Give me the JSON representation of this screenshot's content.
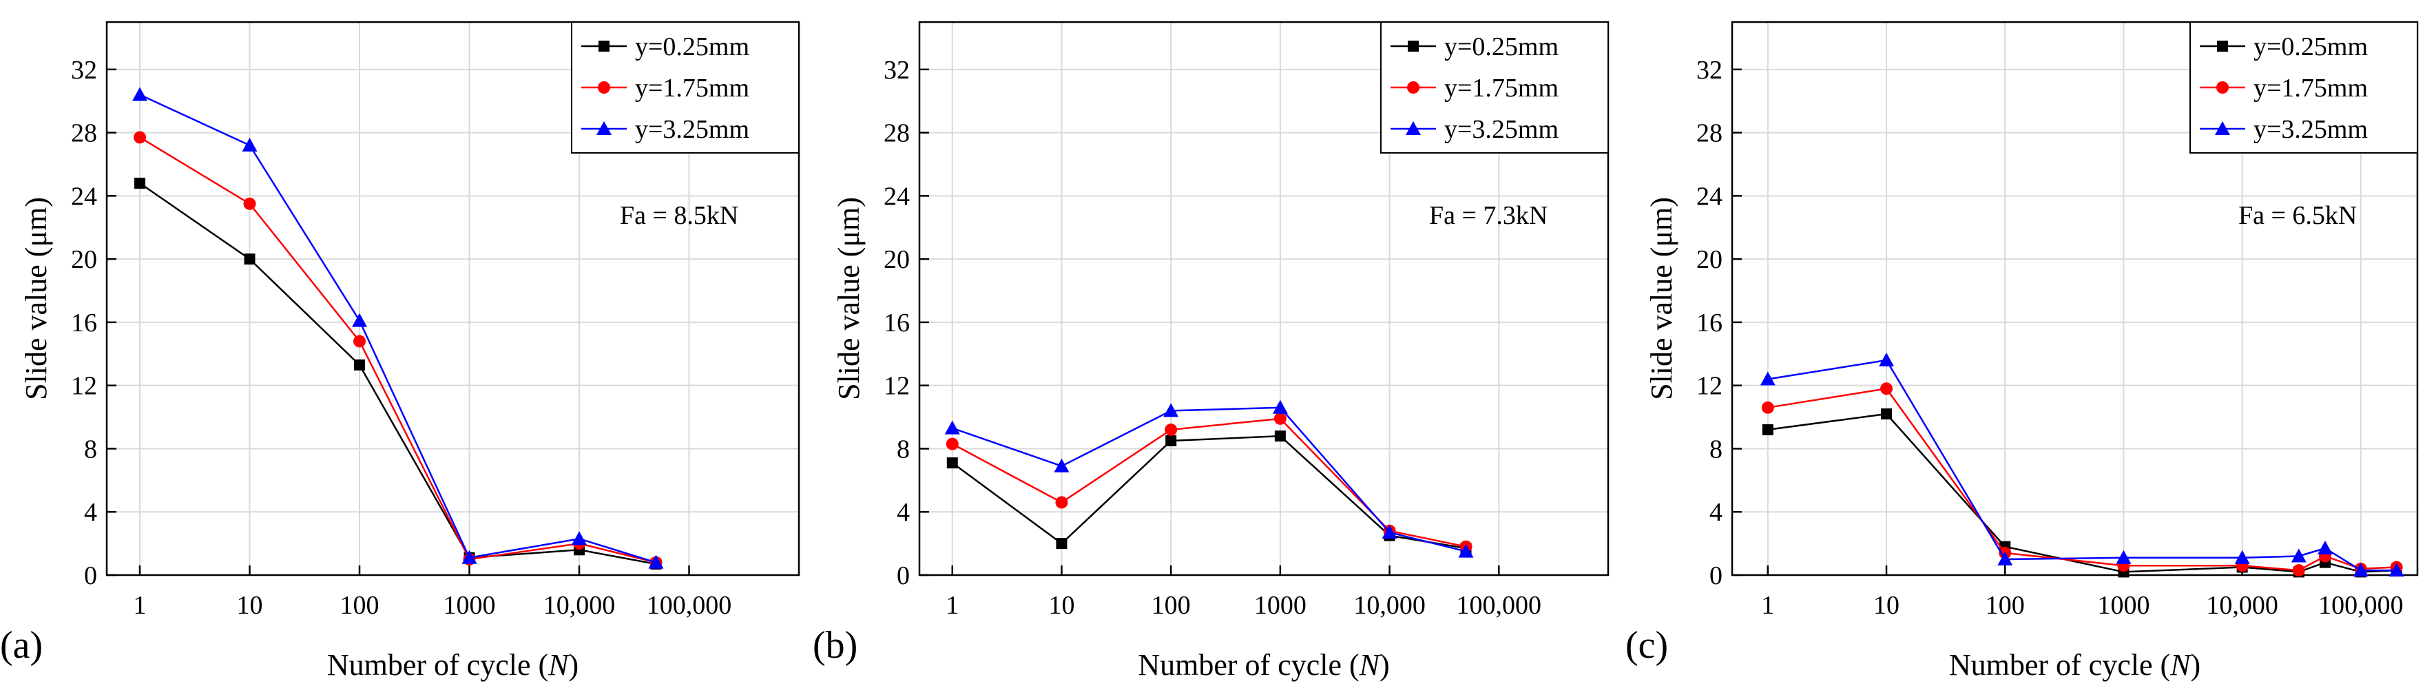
{
  "chart_data": [
    {
      "type": "line",
      "panel_label": "(a)",
      "xlabel_prefix": "Number of cycle (",
      "xlabel_var": "N",
      "xlabel_suffix": ")",
      "ylabel": "Slide value (μm)",
      "x_scale": "log",
      "xlim": [
        0.5,
        1000000
      ],
      "ylim": [
        0,
        35
      ],
      "xticks": [
        1,
        10,
        100,
        1000,
        10000,
        100000
      ],
      "xtick_labels": [
        "1",
        "10",
        "100",
        "1000",
        "10,000",
        "100,000"
      ],
      "yticks": [
        0,
        4,
        8,
        12,
        16,
        20,
        24,
        28,
        32
      ],
      "ytick_labels": [
        "0",
        "4",
        "8",
        "12",
        "16",
        "20",
        "24",
        "28",
        "32"
      ],
      "grid": true,
      "legend_position": "top-right",
      "annotation": "Fa = 8.5kN",
      "series": [
        {
          "name": "y=0.25mm",
          "color": "#000000",
          "marker": "square",
          "x": [
            1,
            10,
            100,
            1000,
            10000,
            50000
          ],
          "y": [
            24.8,
            20.0,
            13.3,
            1.1,
            1.6,
            0.7
          ]
        },
        {
          "name": "y=1.75mm",
          "color": "#ff0000",
          "marker": "circle",
          "x": [
            1,
            10,
            100,
            1000,
            10000,
            50000
          ],
          "y": [
            27.7,
            23.5,
            14.8,
            1.0,
            2.0,
            0.8
          ]
        },
        {
          "name": "y=3.25mm",
          "color": "#0000ff",
          "marker": "triangle",
          "x": [
            1,
            10,
            100,
            1000,
            10000,
            50000
          ],
          "y": [
            30.4,
            27.2,
            16.1,
            1.1,
            2.3,
            0.8
          ]
        }
      ]
    },
    {
      "type": "line",
      "panel_label": "(b)",
      "xlabel_prefix": "Number of cycle (",
      "xlabel_var": "N",
      "xlabel_suffix": ")",
      "ylabel": "Slide value (μm)",
      "x_scale": "log",
      "xlim": [
        0.5,
        1000000
      ],
      "ylim": [
        0,
        35
      ],
      "xticks": [
        1,
        10,
        100,
        1000,
        10000,
        100000
      ],
      "xtick_labels": [
        "1",
        "10",
        "100",
        "1000",
        "10,000",
        "100,000"
      ],
      "yticks": [
        0,
        4,
        8,
        12,
        16,
        20,
        24,
        28,
        32
      ],
      "ytick_labels": [
        "0",
        "4",
        "8",
        "12",
        "16",
        "20",
        "24",
        "28",
        "32"
      ],
      "grid": true,
      "legend_position": "top-right",
      "annotation": "Fa = 7.3kN",
      "series": [
        {
          "name": "y=0.25mm",
          "color": "#000000",
          "marker": "square",
          "x": [
            1,
            10,
            100,
            1000,
            10000,
            50000
          ],
          "y": [
            7.1,
            2.0,
            8.5,
            8.8,
            2.5,
            1.7
          ]
        },
        {
          "name": "y=1.75mm",
          "color": "#ff0000",
          "marker": "circle",
          "x": [
            1,
            10,
            100,
            1000,
            10000,
            50000
          ],
          "y": [
            8.3,
            4.6,
            9.2,
            9.9,
            2.8,
            1.8
          ]
        },
        {
          "name": "y=3.25mm",
          "color": "#0000ff",
          "marker": "triangle",
          "x": [
            1,
            10,
            100,
            1000,
            10000,
            50000
          ],
          "y": [
            9.3,
            6.9,
            10.4,
            10.6,
            2.7,
            1.5
          ]
        }
      ]
    },
    {
      "type": "line",
      "panel_label": "(c)",
      "xlabel_prefix": "Number of cycle (",
      "xlabel_var": "N",
      "xlabel_suffix": ")",
      "ylabel": "Slide value (μm)",
      "x_scale": "log",
      "xlim": [
        0.5,
        300000
      ],
      "ylim": [
        0,
        35
      ],
      "xticks": [
        1,
        10,
        100,
        1000,
        10000,
        100000
      ],
      "xtick_labels": [
        "1",
        "10",
        "100",
        "1000",
        "10,000",
        "100,000"
      ],
      "yticks": [
        0,
        4,
        8,
        12,
        16,
        20,
        24,
        28,
        32
      ],
      "ytick_labels": [
        "0",
        "4",
        "8",
        "12",
        "16",
        "20",
        "24",
        "28",
        "32"
      ],
      "grid": true,
      "legend_position": "top-right",
      "annotation": "Fa = 6.5kN",
      "series": [
        {
          "name": "y=0.25mm",
          "color": "#000000",
          "marker": "square",
          "x": [
            1,
            10,
            100,
            1000,
            10000,
            30000,
            50000,
            100000,
            200000
          ],
          "y": [
            9.2,
            10.2,
            1.8,
            0.2,
            0.5,
            0.2,
            0.8,
            0.2,
            0.3
          ]
        },
        {
          "name": "y=1.75mm",
          "color": "#ff0000",
          "marker": "circle",
          "x": [
            1,
            10,
            100,
            1000,
            10000,
            30000,
            50000,
            100000,
            200000
          ],
          "y": [
            10.6,
            11.8,
            1.4,
            0.6,
            0.6,
            0.3,
            1.2,
            0.4,
            0.5
          ]
        },
        {
          "name": "y=3.25mm",
          "color": "#0000ff",
          "marker": "triangle",
          "x": [
            1,
            10,
            100,
            1000,
            10000,
            30000,
            50000,
            100000,
            200000
          ],
          "y": [
            12.4,
            13.6,
            1.0,
            1.1,
            1.1,
            1.2,
            1.7,
            0.3,
            0.3
          ]
        }
      ]
    }
  ]
}
